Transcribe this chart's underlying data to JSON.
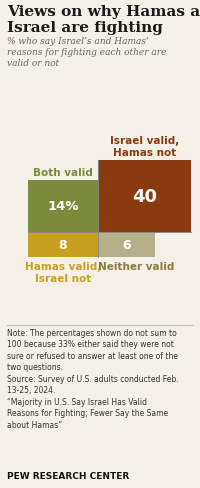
{
  "title": "Views on why Hamas and\nIsrael are fighting",
  "subtitle": "% who say Israel’s and Hamas’\nreasons for fighting each other are\nvalid or not",
  "top_left_label": "Both valid",
  "top_right_label": "Israel valid,\nHamas not",
  "bottom_left_label": "Hamas valid,\nIsrael not",
  "bottom_right_label": "Neither valid",
  "top_left_value": "14%",
  "top_right_value": "40",
  "bottom_left_value": "8",
  "bottom_right_value": "6",
  "color_top_left": "#7a8c3b",
  "color_top_right": "#8b3a10",
  "color_bottom_left": "#c8a020",
  "color_bottom_right": "#b5b08a",
  "label_top_left_color": "#7a8c3b",
  "label_top_right_color": "#8b3a10",
  "label_bottom_left_color": "#c8a020",
  "label_bottom_right_color": "#8b7a40",
  "note_text": "Note: The percentages shown do not sum to\n100 because 33% either said they were not\nsure or refused to answer at least one of the\ntwo questions.\nSource: Survey of U.S. adults conducted Feb.\n13-25, 2024.\n“Majority in U.S. Say Israel Has Valid\nReasons for Fighting; Fewer Say the Same\nabout Hamas”",
  "footer": "PEW RESEARCH CENTER",
  "bg_color": "#f5f0e8"
}
